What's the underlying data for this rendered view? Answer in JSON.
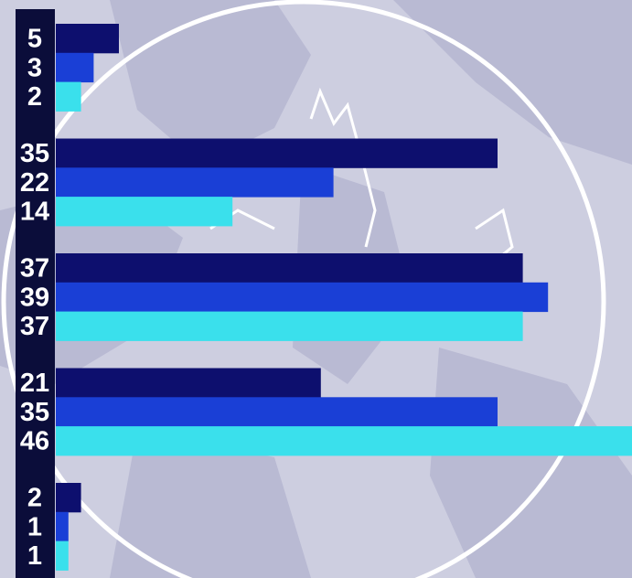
{
  "chart_data": {
    "type": "bar",
    "orientation": "horizontal",
    "series": [
      {
        "color": "#0d0f6e",
        "values": [
          5,
          35,
          37,
          21,
          2
        ]
      },
      {
        "color": "#1a3fd6",
        "values": [
          3,
          22,
          39,
          35,
          1
        ]
      },
      {
        "color": "#3ae0ec",
        "values": [
          2,
          14,
          37,
          46,
          1
        ]
      }
    ]
  }
}
